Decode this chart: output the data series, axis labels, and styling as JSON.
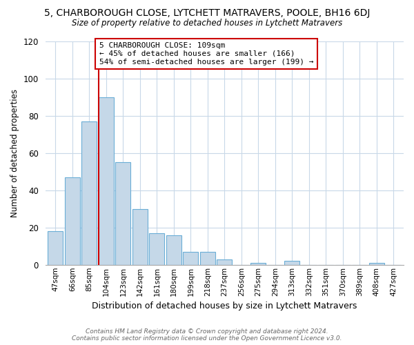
{
  "title": "5, CHARBOROUGH CLOSE, LYTCHETT MATRAVERS, POOLE, BH16 6DJ",
  "subtitle": "Size of property relative to detached houses in Lytchett Matravers",
  "xlabel": "Distribution of detached houses by size in Lytchett Matravers",
  "ylabel": "Number of detached properties",
  "bar_labels": [
    "47sqm",
    "66sqm",
    "85sqm",
    "104sqm",
    "123sqm",
    "142sqm",
    "161sqm",
    "180sqm",
    "199sqm",
    "218sqm",
    "237sqm",
    "256sqm",
    "275sqm",
    "294sqm",
    "313sqm",
    "332sqm",
    "351sqm",
    "370sqm",
    "389sqm",
    "408sqm",
    "427sqm"
  ],
  "bar_heights": [
    18,
    47,
    77,
    90,
    55,
    30,
    17,
    16,
    7,
    7,
    3,
    0,
    1,
    0,
    2,
    0,
    0,
    0,
    0,
    1,
    0
  ],
  "bar_color": "#c5d8e8",
  "bar_edge_color": "#6aaed6",
  "ylim": [
    0,
    120
  ],
  "yticks": [
    0,
    20,
    40,
    60,
    80,
    100,
    120
  ],
  "vline_x_index": 3,
  "marker_label": "5 CHARBOROUGH CLOSE: 109sqm",
  "annotation_line1": "← 45% of detached houses are smaller (166)",
  "annotation_line2": "54% of semi-detached houses are larger (199) →",
  "vline_color": "#cc0000",
  "annotation_box_color": "#ffffff",
  "annotation_box_edge": "#cc0000",
  "footer_line1": "Contains HM Land Registry data © Crown copyright and database right 2024.",
  "footer_line2": "Contains public sector information licensed under the Open Government Licence v3.0.",
  "background_color": "#ffffff",
  "grid_color": "#c8d8e8"
}
